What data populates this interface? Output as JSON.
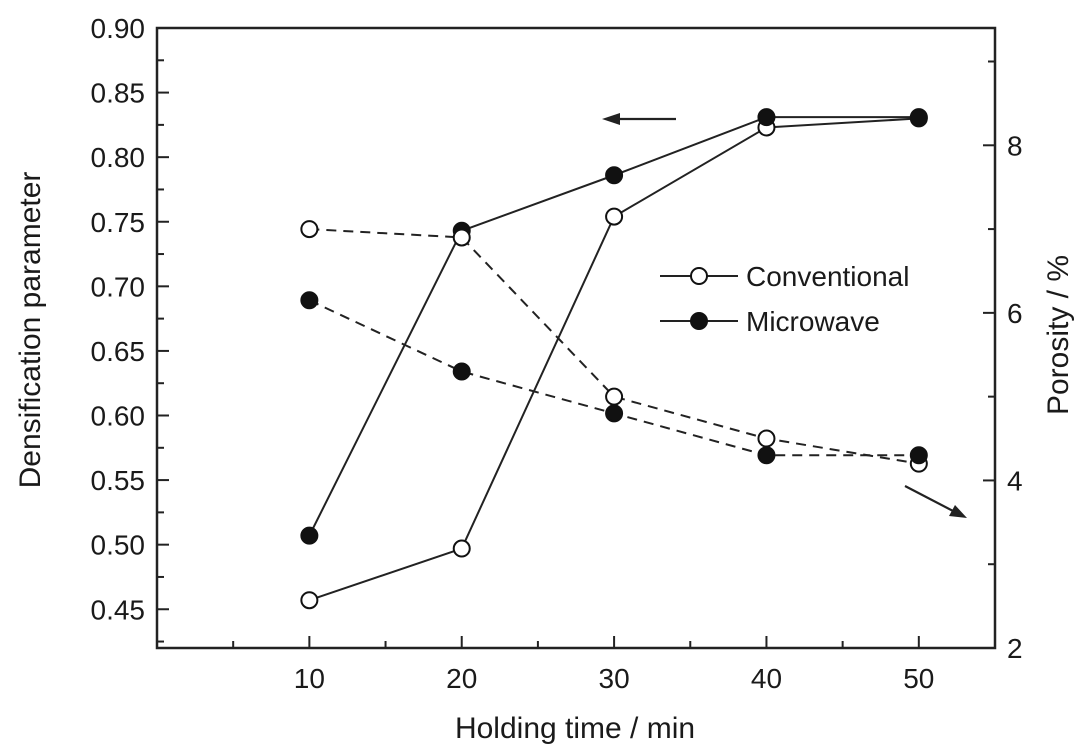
{
  "chart_data": {
    "type": "line",
    "title": "",
    "xlabel": "Holding time / min",
    "ylabel": "Densification parameter",
    "y2label": "Porosity / %",
    "x": [
      10,
      20,
      30,
      40,
      50
    ],
    "xticks": [
      "10",
      "20",
      "30",
      "40",
      "50"
    ],
    "xlim": [
      0,
      55
    ],
    "ylim": [
      0.42,
      0.9
    ],
    "yticks": [
      "0.45",
      "0.50",
      "0.55",
      "0.60",
      "0.65",
      "0.70",
      "0.75",
      "0.80",
      "0.85",
      "0.90"
    ],
    "y2lim": [
      2,
      9.4
    ],
    "y2ticks": [
      "2",
      "4",
      "6",
      "8"
    ],
    "grid": false,
    "legend_position": "center-right",
    "series": [
      {
        "name": "Conventional",
        "axis": "left",
        "marker": "open-circle",
        "line": "solid",
        "values": [
          0.457,
          0.497,
          0.754,
          0.823,
          0.83
        ]
      },
      {
        "name": "Microwave",
        "axis": "left",
        "marker": "filled-circle",
        "line": "solid",
        "values": [
          0.507,
          0.743,
          0.786,
          0.831,
          0.831
        ]
      },
      {
        "name": "Conventional",
        "axis": "right",
        "marker": "open-circle",
        "line": "dashed",
        "values": [
          7.0,
          6.9,
          5.0,
          4.5,
          4.2
        ]
      },
      {
        "name": "Microwave",
        "axis": "right",
        "marker": "filled-circle",
        "line": "dashed",
        "values": [
          6.15,
          5.3,
          4.8,
          4.3,
          4.3
        ]
      }
    ],
    "legend": [
      {
        "label": "Conventional",
        "marker": "open-circle"
      },
      {
        "label": "Microwave",
        "marker": "filled-circle"
      }
    ],
    "annotations": [
      {
        "type": "arrow",
        "points_to": "left axis"
      },
      {
        "type": "arrow",
        "points_to": "right axis"
      }
    ]
  }
}
